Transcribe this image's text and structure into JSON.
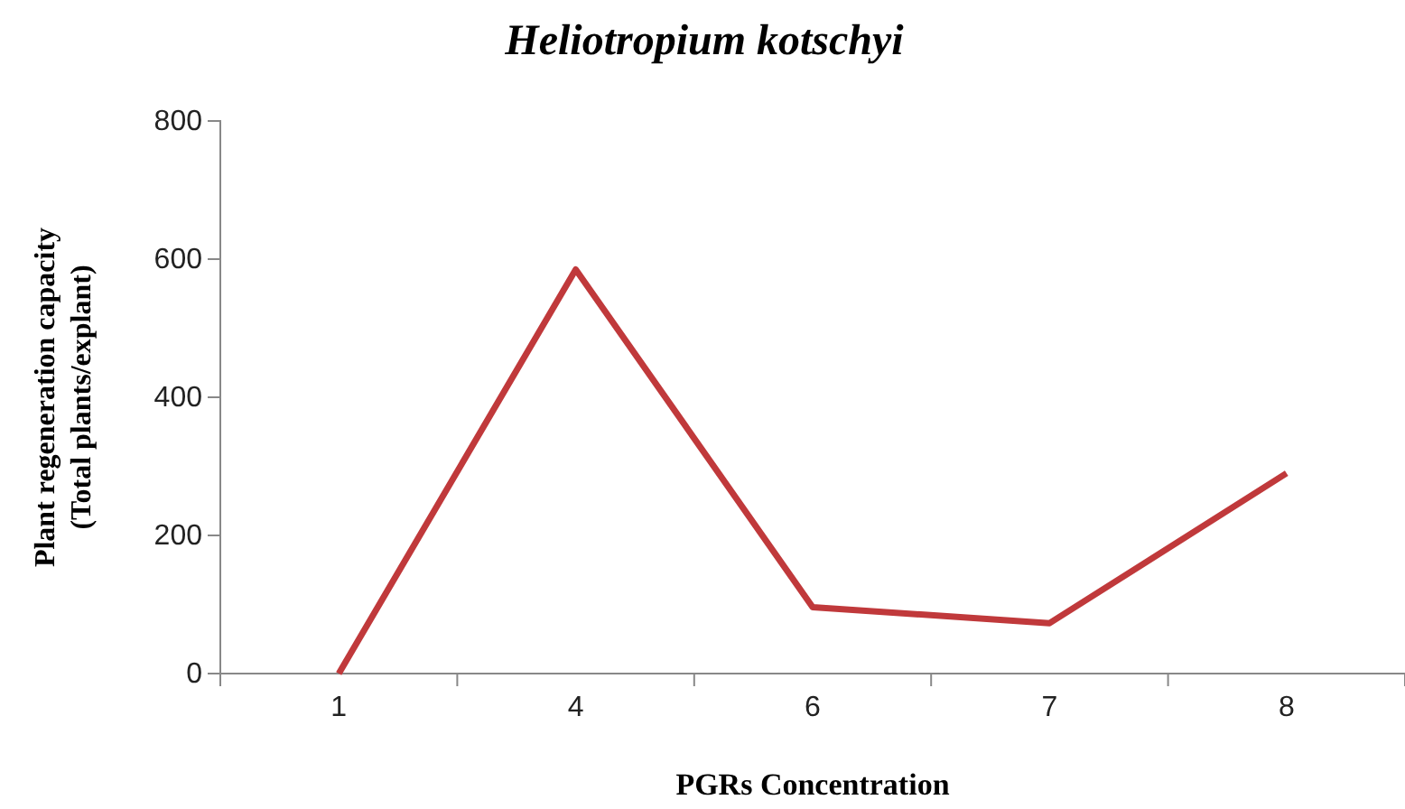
{
  "chart_data": {
    "type": "line",
    "title": "Heliotropium kotschyi",
    "xlabel": "PGRs Concentration",
    "ylabel": "Plant regeneration capacity\n(Total plants/explant)",
    "categories": [
      "1",
      "4",
      "6",
      "7",
      "8"
    ],
    "series": [
      {
        "color": "#c0393b",
        "values": [
          0,
          585,
          96,
          73,
          290
        ]
      }
    ],
    "ylim": [
      0,
      800
    ],
    "yticks": [
      0,
      200,
      400,
      600,
      800
    ],
    "marker": "none",
    "line_style": "solid"
  }
}
